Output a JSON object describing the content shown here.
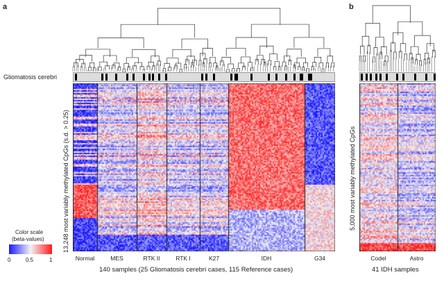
{
  "panel_a": {
    "label": "a",
    "track_label": "Gliomatosis cerebri",
    "y_label": "13,248 most variably methylated CpGs (s.d. > 0.25)",
    "x_label": "140 samples (25 Gliomatosis cerebri cases, 115 Reference cases)",
    "groups": [
      "Normal",
      "MES",
      "RTK II",
      "RTK I",
      "K27",
      "IDH",
      "G34"
    ]
  },
  "panel_b": {
    "label": "b",
    "y_label": "5,000 most variably methylated CpGs",
    "x_label": "41 IDH samples",
    "groups": [
      "Codel",
      "Astro"
    ]
  },
  "color_scale": {
    "title": "Color scale",
    "subtitle": "(beta-values)",
    "ticks": [
      "0",
      "0.5",
      "1"
    ],
    "colors": {
      "low": "#1a1aff",
      "mid": "#f2f2f2",
      "high": "#ff1a1a"
    }
  }
}
